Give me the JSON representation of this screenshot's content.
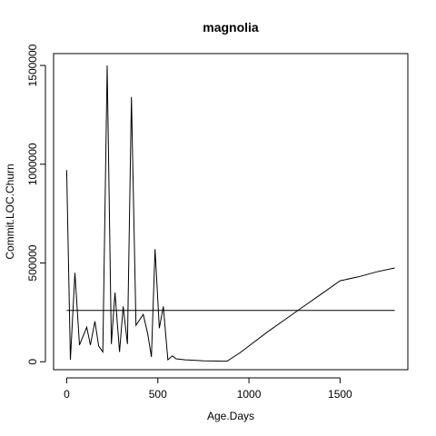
{
  "chart_data": {
    "type": "line",
    "title": "magnolia",
    "xlabel": "Age.Days",
    "ylabel": "Commit.LOC.Churn",
    "xlim": [
      -72,
      1872
    ],
    "ylim": [
      -40000,
      1560000
    ],
    "xticks": [
      0,
      500,
      1000,
      1500
    ],
    "xtick_labels": [
      "0",
      "500",
      "1000",
      "1500"
    ],
    "yticks": [
      0,
      500000,
      1000000,
      1500000
    ],
    "ytick_labels": [
      "0",
      "500000",
      "1000000",
      "1500000"
    ],
    "grid": false,
    "legend": "none",
    "series": [
      {
        "values_x": [
          0,
          20,
          45,
          70,
          110,
          130,
          155,
          175,
          198,
          222,
          245,
          265,
          290,
          310,
          333,
          355,
          380,
          420,
          445,
          465,
          485,
          508,
          530,
          555,
          580,
          600,
          650,
          700,
          750,
          800,
          850,
          880,
          900,
          950,
          1000,
          1100,
          1200,
          1300,
          1400,
          1500,
          1600,
          1700,
          1800
        ],
        "values_y": [
          970000,
          10000,
          450000,
          85000,
          175000,
          85000,
          205000,
          80000,
          50000,
          1500000,
          90000,
          350000,
          50000,
          280000,
          90000,
          1340000,
          185000,
          240000,
          140000,
          25000,
          570000,
          170000,
          280000,
          10000,
          30000,
          15000,
          10000,
          8000,
          5000,
          4000,
          3000,
          3000,
          15000,
          45000,
          80000,
          150000,
          215000,
          280000,
          345000,
          410000,
          430000,
          455000,
          475000
        ]
      },
      {
        "values_x": [
          0,
          1800
        ],
        "values_y": [
          260000,
          260000
        ]
      }
    ]
  }
}
